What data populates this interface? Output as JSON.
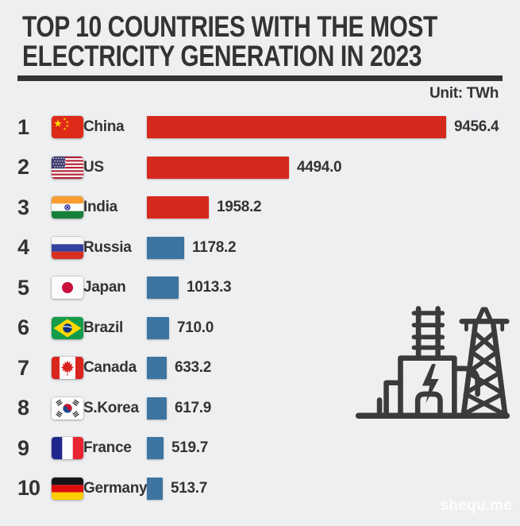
{
  "title": {
    "line1": "TOP 10 COUNTRIES WITH THE MOST",
    "line2": "ELECTRICITY GENERATION IN 2023"
  },
  "unit_label": "Unit: TWh",
  "watermark": "shequ.me",
  "colors": {
    "background": "#edeff1",
    "text": "#333333",
    "bar_red": "#d6291e",
    "bar_blue": "#3e74a0",
    "icon": "#3b3b3b"
  },
  "icons": {
    "decoration": "power-plant-and-transmission-tower-icon"
  },
  "chart_data": {
    "type": "bar",
    "orientation": "horizontal",
    "title": "TOP 10 COUNTRIES WITH THE MOST ELECTRICITY GENERATION IN 2023",
    "unit": "TWh",
    "xlim": [
      0,
      9456.4
    ],
    "grid": false,
    "legend": false,
    "categories": [
      "China",
      "US",
      "India",
      "Russia",
      "Japan",
      "Brazil",
      "Canada",
      "S.Korea",
      "France",
      "Germany"
    ],
    "values": [
      9456.4,
      4494.0,
      1958.2,
      1178.2,
      1013.3,
      710.0,
      633.2,
      617.9,
      519.7,
      513.7
    ],
    "value_labels": [
      "9456.4",
      "4494.0",
      "1958.2",
      "1178.2",
      "1013.3",
      "710.0",
      "633.2",
      "617.9",
      "519.7",
      "513.7"
    ],
    "bar_colors": [
      "#d6291e",
      "#d6291e",
      "#d6291e",
      "#3e74a0",
      "#3e74a0",
      "#3e74a0",
      "#3e74a0",
      "#3e74a0",
      "#3e74a0",
      "#3e74a0"
    ],
    "flags": [
      "china",
      "us",
      "india",
      "russia",
      "japan",
      "brazil",
      "canada",
      "skorea",
      "france",
      "germany"
    ]
  }
}
